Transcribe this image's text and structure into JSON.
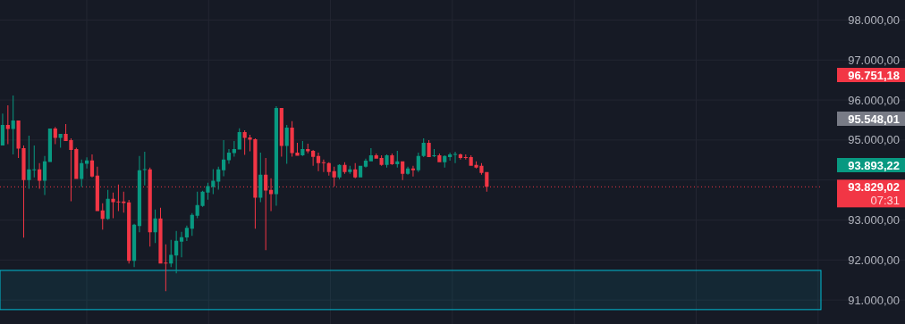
{
  "chart_data": {
    "type": "candlestick",
    "categories": [
      null,
      null,
      null,
      null,
      null,
      null,
      null,
      null,
      null,
      null,
      null,
      null,
      null,
      null,
      null,
      null,
      null,
      null,
      null,
      null,
      null,
      null,
      null,
      null,
      null,
      null,
      null,
      null,
      null,
      null,
      null,
      null,
      null,
      null,
      null,
      null,
      null,
      null,
      null,
      null,
      null,
      null,
      null,
      null,
      null,
      null,
      null,
      null,
      null,
      null,
      null,
      null,
      null,
      null,
      null,
      null,
      null,
      null,
      null,
      null,
      null,
      null,
      null,
      null,
      null,
      null,
      null,
      null,
      null,
      null,
      null,
      null,
      null,
      null,
      null,
      null,
      null,
      null,
      null,
      null,
      null,
      null,
      null,
      null,
      null,
      null,
      null,
      null,
      null,
      null,
      null,
      null,
      null,
      null,
      null,
      null,
      null,
      null,
      null,
      null,
      null,
      null,
      null,
      null,
      null,
      null,
      null,
      null,
      null,
      null,
      null,
      null,
      null,
      null,
      null,
      null,
      null,
      null,
      null,
      null,
      null,
      null,
      null,
      null,
      null,
      null,
      null,
      null,
      null,
      null,
      null,
      null,
      null,
      null,
      null,
      null,
      null,
      null,
      null,
      null,
      null,
      null,
      null,
      null,
      null,
      null,
      null,
      null,
      null,
      null,
      null,
      null,
      null,
      null,
      null,
      null
    ],
    "ohlc": [
      [
        94865,
        95659,
        94865,
        95377
      ],
      [
        95377,
        95867,
        94895,
        95273
      ],
      [
        95273,
        96110,
        94642,
        95488
      ],
      [
        95488,
        95488,
        94553,
        94783
      ],
      [
        94798,
        94865,
        92557,
        93997
      ],
      [
        93997,
        95110,
        93782,
        94264
      ],
      [
        94249,
        94865,
        94064,
        94264
      ],
      [
        94264,
        94420,
        93782,
        93982
      ],
      [
        93982,
        94598,
        93626,
        94464
      ],
      [
        94449,
        95288,
        94449,
        95288
      ],
      [
        95288,
        95325,
        94895,
        95050
      ],
      [
        95050,
        95154,
        94806,
        95154
      ],
      [
        95154,
        95399,
        94976,
        94976
      ],
      [
        94998,
        95043,
        93470,
        94754
      ],
      [
        94776,
        94806,
        94027,
        94027
      ],
      [
        94027,
        94509,
        93826,
        94420
      ],
      [
        94405,
        94568,
        94286,
        94487
      ],
      [
        94487,
        94642,
        94064,
        94086
      ],
      [
        94108,
        94331,
        93225,
        93225
      ],
      [
        93240,
        93418,
        92758,
        93025
      ],
      [
        93025,
        93752,
        93003,
        93529
      ],
      [
        93529,
        93685,
        93047,
        93448
      ],
      [
        93463,
        93885,
        93225,
        93448
      ],
      [
        93463,
        93707,
        93181,
        93425
      ],
      [
        93440,
        93500,
        91912,
        91979
      ],
      [
        91979,
        92906,
        91823,
        92884
      ],
      [
        92847,
        94598,
        92691,
        94242
      ],
      [
        94257,
        94709,
        93863,
        94271
      ],
      [
        94264,
        94308,
        92335,
        92691
      ],
      [
        92691,
        93262,
        92424,
        93040
      ],
      [
        93040,
        93307,
        91912,
        91912
      ],
      [
        91934,
        92394,
        91222,
        91912
      ],
      [
        91912,
        92505,
        91823,
        92127
      ],
      [
        92112,
        92728,
        91667,
        92483
      ],
      [
        92461,
        92706,
        92068,
        92572
      ],
      [
        92565,
        92862,
        92476,
        92802
      ],
      [
        92780,
        93173,
        92602,
        93129
      ],
      [
        93106,
        93707,
        93047,
        93374
      ],
      [
        93351,
        93730,
        93329,
        93707
      ],
      [
        93685,
        93930,
        93507,
        93848
      ],
      [
        93826,
        94271,
        93648,
        93982
      ],
      [
        93960,
        94331,
        93759,
        94264
      ],
      [
        94242,
        94998,
        94093,
        94509
      ],
      [
        94494,
        94776,
        94405,
        94687
      ],
      [
        94672,
        94976,
        94583,
        94776
      ],
      [
        94761,
        95295,
        94761,
        95199
      ],
      [
        95199,
        95243,
        94627,
        95050
      ],
      [
        95065,
        95132,
        94717,
        95006
      ],
      [
        95021,
        95043,
        92780,
        93559
      ],
      [
        93559,
        94687,
        93448,
        94130
      ],
      [
        94130,
        94553,
        92246,
        93737
      ],
      [
        93752,
        94041,
        93225,
        93648
      ],
      [
        93648,
        95844,
        93359,
        95800
      ],
      [
        95800,
        95800,
        94583,
        94850
      ],
      [
        94850,
        95377,
        94405,
        95310
      ],
      [
        95310,
        95473,
        94583,
        94672
      ],
      [
        94687,
        94932,
        94605,
        94605
      ],
      [
        94620,
        94976,
        94598,
        94776
      ],
      [
        94776,
        94910,
        94665,
        94717
      ],
      [
        94731,
        94754,
        94353,
        94576
      ],
      [
        94598,
        94687,
        94219,
        94420
      ],
      [
        94442,
        94509,
        94197,
        94427
      ],
      [
        94420,
        94442,
        94108,
        94197
      ],
      [
        94219,
        94331,
        93841,
        94063
      ],
      [
        94063,
        94397,
        94019,
        94375
      ],
      [
        94375,
        94442,
        94152,
        94197
      ],
      [
        94197,
        94353,
        94152,
        94264
      ],
      [
        94264,
        94420,
        94041,
        94063
      ],
      [
        94063,
        94353,
        94063,
        94353
      ],
      [
        94331,
        94531,
        94308,
        94486
      ],
      [
        94464,
        94798,
        94464,
        94620
      ],
      [
        94620,
        94664,
        94531,
        94531
      ],
      [
        94553,
        94620,
        94353,
        94375
      ],
      [
        94375,
        94642,
        94308,
        94620
      ],
      [
        94620,
        94664,
        94375,
        94397
      ],
      [
        94397,
        94731,
        94308,
        94464
      ],
      [
        94464,
        94464,
        93997,
        94152
      ],
      [
        94152,
        94331,
        94130,
        94286
      ],
      [
        94286,
        94353,
        94086,
        94241
      ],
      [
        94241,
        94687,
        94197,
        94598
      ],
      [
        94598,
        95043,
        94575,
        94932
      ],
      [
        94932,
        94998,
        94575,
        94575
      ],
      [
        94605,
        94776,
        94575,
        94620
      ],
      [
        94620,
        94664,
        94442,
        94442
      ],
      [
        94442,
        94620,
        94308,
        94598
      ],
      [
        94575,
        94687,
        94486,
        94642
      ],
      [
        94635,
        94709,
        94420,
        94650
      ],
      [
        94642,
        94664,
        94509,
        94553
      ],
      [
        94575,
        94642,
        94509,
        94553
      ],
      [
        94575,
        94620,
        94353,
        94353
      ],
      [
        94375,
        94464,
        94286,
        94308
      ],
      [
        94353,
        94420,
        94130,
        94175
      ],
      [
        94197,
        94197,
        93707,
        93829
      ],
      null,
      null,
      null,
      null,
      null,
      null,
      null,
      null,
      null,
      null,
      null,
      null,
      null,
      null,
      null,
      null,
      null,
      null,
      null,
      null,
      null,
      null,
      null,
      null,
      null,
      null,
      null,
      null,
      null,
      null,
      null,
      null,
      null,
      null,
      null,
      null,
      null,
      null,
      null,
      null,
      null,
      null,
      null,
      null,
      null,
      null,
      null,
      null,
      null,
      null,
      null,
      null,
      null,
      null,
      null,
      null,
      null,
      null,
      null,
      null,
      null,
      null,
      null
    ],
    "ylim": [
      90400,
      98500
    ],
    "yticks": [
      {
        "value": 91000,
        "label": "91.000,00"
      },
      {
        "value": 92000,
        "label": "92.000,00"
      },
      {
        "value": 93000,
        "label": "93.000,00"
      },
      {
        "value": 94000,
        "label": null
      },
      {
        "value": 95000,
        "label": "95.000,00"
      },
      {
        "value": 96000,
        "label": "96.000,00"
      },
      {
        "value": 97000,
        "label": "97.000,00"
      },
      {
        "value": 98000,
        "label": "98.000,00"
      }
    ],
    "grid": true,
    "tick_labels": "y",
    "ref_lines": [
      {
        "axis": "y",
        "value": 93829.02,
        "label": "93.829,02",
        "color": "#f23645",
        "line_style": "dotted"
      }
    ],
    "bands": [
      {
        "axis": "y",
        "from": 90760,
        "to": 91740,
        "color": "#00bcd4"
      }
    ],
    "annotations": [
      "96.751,18",
      "95.548,01",
      "93.893,22",
      "07:31"
    ]
  }
}
